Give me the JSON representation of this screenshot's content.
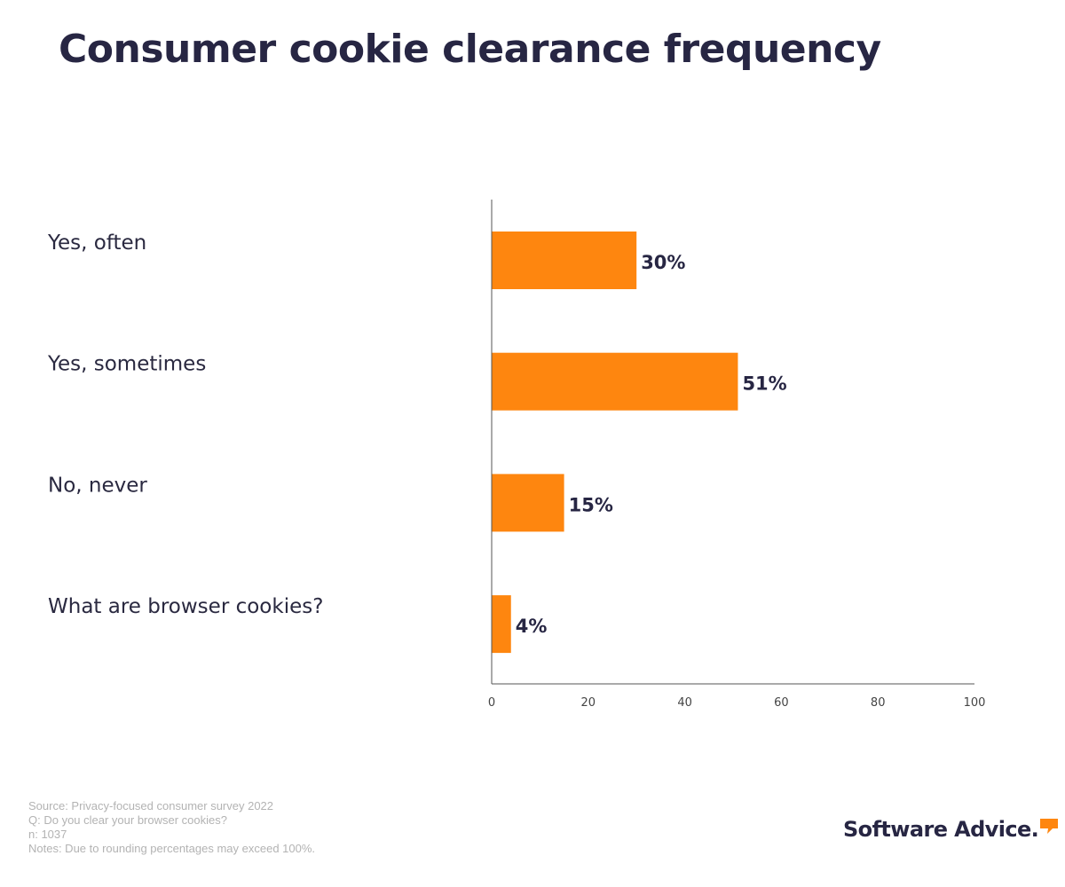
{
  "chart_data": {
    "type": "bar",
    "orientation": "horizontal",
    "title": "Consumer cookie clearance frequency",
    "categories": [
      "Yes, often",
      "Yes, sometimes",
      "No, never",
      "What are browser cookies?"
    ],
    "values": [
      30,
      51,
      15,
      4
    ],
    "value_labels": [
      "30%",
      "51%",
      "15%",
      "4%"
    ],
    "xlim": [
      0,
      100
    ],
    "x_ticks": [
      "0",
      "20",
      "40",
      "60",
      "80",
      "100"
    ],
    "grid": false,
    "bar_color": "#fe860f",
    "label_color": "#272643"
  },
  "notes": {
    "source": "Source: Privacy-focused consumer survey 2022",
    "question": "Q: Do you clear your browser cookies?",
    "n": "n: 1037",
    "disclaimer": "Notes: Due to rounding percentages may exceed 100%."
  },
  "brand": {
    "name": "Software Advice",
    "mark": ".",
    "logo_icon": "speech-bubble-icon",
    "accent_color": "#fe860f"
  }
}
